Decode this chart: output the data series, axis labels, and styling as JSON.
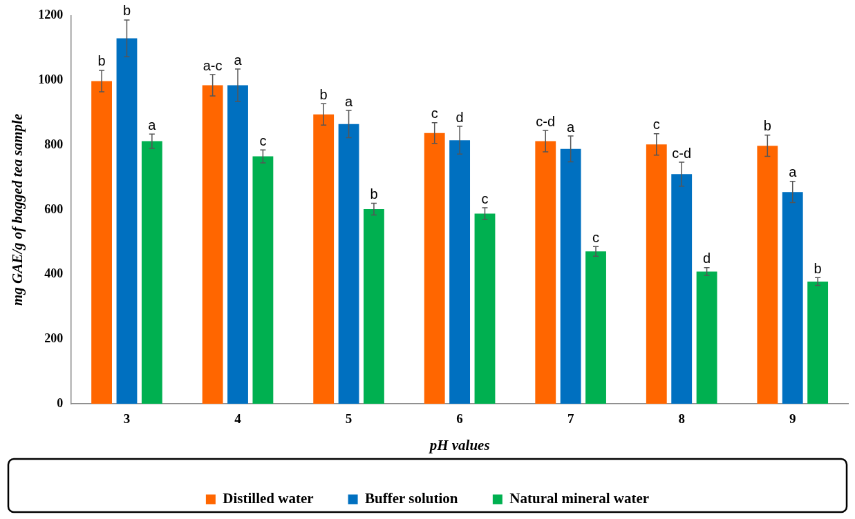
{
  "chart_data": {
    "type": "bar",
    "xlabel": "pH values",
    "ylabel": "mg GAE/g of bagged tea sample",
    "categories": [
      "3",
      "4",
      "5",
      "6",
      "7",
      "8",
      "9"
    ],
    "series": [
      {
        "name": "Distilled water",
        "color": "#ff6600",
        "values": [
          998,
          985,
          895,
          837,
          812,
          802,
          798
        ],
        "errors": [
          33,
          33,
          33,
          32,
          33,
          33,
          33
        ],
        "value_labels": [
          "b",
          "a-c",
          "b",
          "c",
          "c-d",
          "c",
          "b"
        ]
      },
      {
        "name": "Buffer solution",
        "color": "#0070c0",
        "values": [
          1130,
          985,
          865,
          815,
          788,
          710,
          655
        ],
        "errors": [
          57,
          50,
          42,
          43,
          40,
          37,
          33
        ],
        "value_labels": [
          "b",
          "a",
          "a",
          "d",
          "a",
          "c-d",
          "a"
        ]
      },
      {
        "name": "Natural mineral water",
        "color": "#00b050",
        "values": [
          812,
          765,
          602,
          588,
          471,
          409,
          378
        ],
        "errors": [
          22,
          20,
          18,
          18,
          15,
          12,
          12
        ],
        "value_labels": [
          "a",
          "c",
          "b",
          "c",
          "c",
          "d",
          "b"
        ]
      }
    ],
    "ylim": [
      0,
      1200
    ],
    "yticks": [
      0,
      200,
      400,
      600,
      800,
      1000,
      1200
    ],
    "grid": false,
    "legend": "bottom"
  }
}
